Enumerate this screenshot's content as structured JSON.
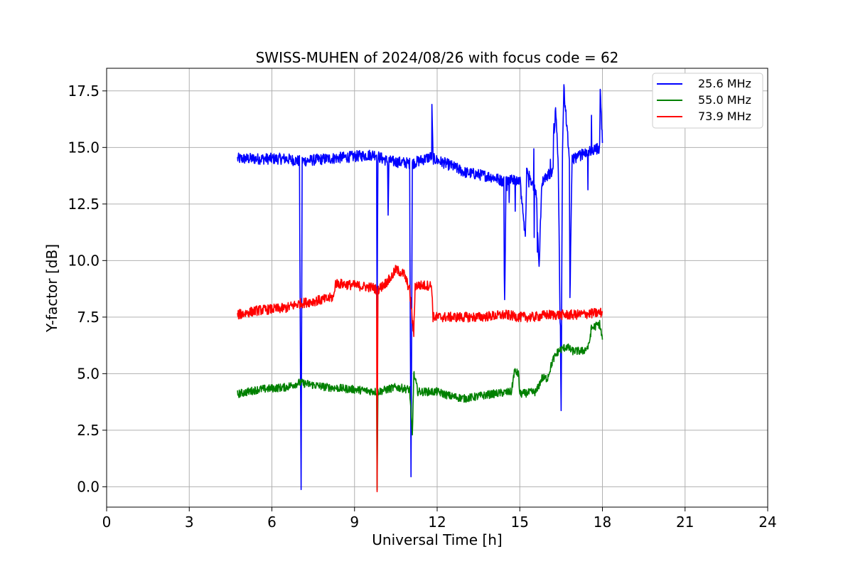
{
  "chart_data": {
    "type": "line",
    "title": "SWISS-MUHEN of 2024/08/26 with focus code = 62",
    "xlabel": "Universal Time [h]",
    "ylabel": "Y-factor [dB]",
    "xlim": [
      0,
      24
    ],
    "ylim": [
      -0.9,
      18.5
    ],
    "xticks": [
      "0",
      "3",
      "6",
      "9",
      "12",
      "15",
      "18",
      "21",
      "24"
    ],
    "yticks": [
      "0.0",
      "2.5",
      "5.0",
      "7.5",
      "10.0",
      "12.5",
      "15.0",
      "17.5"
    ],
    "grid": true,
    "legend_position": "top-right",
    "series": [
      {
        "name": "25.6 MHz",
        "color": "#0000ff",
        "noise": 0.25,
        "points": [
          [
            4.75,
            14.5
          ],
          [
            5.5,
            14.5
          ],
          [
            6.5,
            14.5
          ],
          [
            7.0,
            14.4
          ],
          [
            7.06,
            0.0
          ],
          [
            7.1,
            14.4
          ],
          [
            8.0,
            14.5
          ],
          [
            9.0,
            14.6
          ],
          [
            9.8,
            14.7
          ],
          [
            9.82,
            7.5
          ],
          [
            9.85,
            14.6
          ],
          [
            10.2,
            14.4
          ],
          [
            10.22,
            12.1
          ],
          [
            10.25,
            14.4
          ],
          [
            11.0,
            14.3
          ],
          [
            11.05,
            0.5
          ],
          [
            11.1,
            14.3
          ],
          [
            11.8,
            14.6
          ],
          [
            11.81,
            16.7
          ],
          [
            11.85,
            14.5
          ],
          [
            12.5,
            14.2
          ],
          [
            13.0,
            13.9
          ],
          [
            14.0,
            13.7
          ],
          [
            14.42,
            13.5
          ],
          [
            14.45,
            8.1
          ],
          [
            14.5,
            13.5
          ],
          [
            15.0,
            13.6
          ],
          [
            15.2,
            11.0
          ],
          [
            15.25,
            14.0
          ],
          [
            15.6,
            13.0
          ],
          [
            15.7,
            9.6
          ],
          [
            15.8,
            13.5
          ],
          [
            16.2,
            14.0
          ],
          [
            16.3,
            16.8
          ],
          [
            16.4,
            14.0
          ],
          [
            16.5,
            3.6
          ],
          [
            16.55,
            15.0
          ],
          [
            16.6,
            17.6
          ],
          [
            16.8,
            14.5
          ],
          [
            16.82,
            8.3
          ],
          [
            16.9,
            14.5
          ],
          [
            17.5,
            14.8
          ],
          [
            17.9,
            15.0
          ],
          [
            17.92,
            17.6
          ],
          [
            18.0,
            15.2
          ]
        ]
      },
      {
        "name": "55.0 MHz",
        "color": "#008000",
        "noise": 0.18,
        "points": [
          [
            4.75,
            4.1
          ],
          [
            5.5,
            4.3
          ],
          [
            6.5,
            4.4
          ],
          [
            7.0,
            4.6
          ],
          [
            8.0,
            4.4
          ],
          [
            9.0,
            4.3
          ],
          [
            9.8,
            4.2
          ],
          [
            9.82,
            0.0
          ],
          [
            9.85,
            4.2
          ],
          [
            10.5,
            4.4
          ],
          [
            11.0,
            4.3
          ],
          [
            11.1,
            2.2
          ],
          [
            11.15,
            5.0
          ],
          [
            11.3,
            4.2
          ],
          [
            12.0,
            4.2
          ],
          [
            12.5,
            4.0
          ],
          [
            13.0,
            3.9
          ],
          [
            14.0,
            4.1
          ],
          [
            14.7,
            4.2
          ],
          [
            14.8,
            5.1
          ],
          [
            14.95,
            5.0
          ],
          [
            15.0,
            4.1
          ],
          [
            15.6,
            4.2
          ],
          [
            15.8,
            4.8
          ],
          [
            16.0,
            4.8
          ],
          [
            16.2,
            5.6
          ],
          [
            16.4,
            6.0
          ],
          [
            16.7,
            6.2
          ],
          [
            16.9,
            6.0
          ],
          [
            17.3,
            6.0
          ],
          [
            17.5,
            6.2
          ],
          [
            17.6,
            7.0
          ],
          [
            17.9,
            7.2
          ],
          [
            18.0,
            6.5
          ]
        ]
      },
      {
        "name": "73.9 MHz",
        "color": "#ff0000",
        "noise": 0.22,
        "points": [
          [
            4.75,
            7.6
          ],
          [
            5.5,
            7.8
          ],
          [
            6.5,
            7.9
          ],
          [
            7.0,
            8.1
          ],
          [
            7.5,
            8.2
          ],
          [
            8.0,
            8.3
          ],
          [
            8.25,
            8.4
          ],
          [
            8.3,
            9.0
          ],
          [
            9.0,
            8.9
          ],
          [
            9.7,
            8.8
          ],
          [
            9.8,
            8.7
          ],
          [
            9.82,
            0.0
          ],
          [
            9.85,
            8.7
          ],
          [
            10.3,
            9.2
          ],
          [
            10.5,
            9.6
          ],
          [
            10.8,
            9.4
          ],
          [
            11.0,
            8.7
          ],
          [
            11.15,
            6.7
          ],
          [
            11.2,
            8.9
          ],
          [
            11.8,
            8.9
          ],
          [
            11.85,
            7.5
          ],
          [
            12.5,
            7.5
          ],
          [
            13.5,
            7.5
          ],
          [
            14.5,
            7.6
          ],
          [
            15.0,
            7.5
          ],
          [
            15.5,
            7.5
          ],
          [
            16.0,
            7.6
          ],
          [
            17.0,
            7.6
          ],
          [
            18.0,
            7.7
          ]
        ]
      }
    ]
  }
}
